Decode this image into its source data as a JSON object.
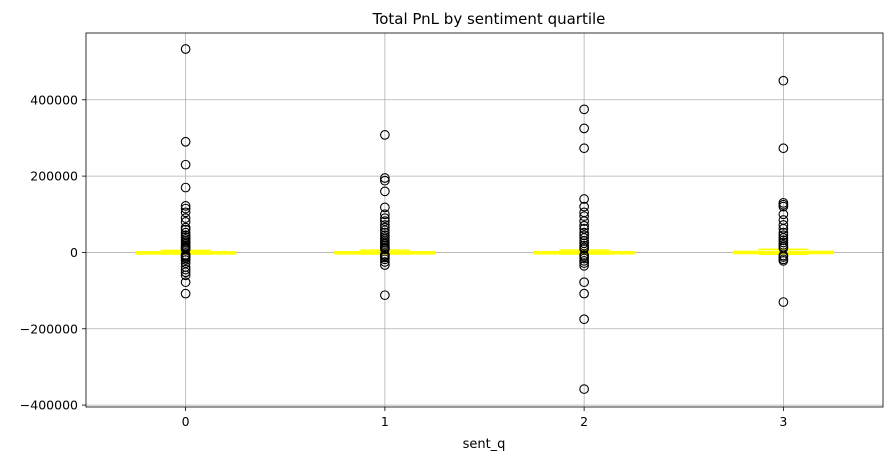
{
  "chart_data": {
    "type": "box",
    "title": "Total PnL by sentiment quartile",
    "xlabel": "sent_q",
    "ylabel": "",
    "categories": [
      "0",
      "1",
      "2",
      "3"
    ],
    "ylim": [
      -405000,
      575000
    ],
    "yticks": [
      -400000,
      -200000,
      0,
      200000,
      400000
    ],
    "ytick_labels": [
      "−400000",
      "−200000",
      "0",
      "200000",
      "400000"
    ],
    "grid": true,
    "box_color": "#ffff00",
    "boxes": [
      {
        "category": "0",
        "q1": -800,
        "median": 0,
        "q3": 1500,
        "whisker_low": -4000,
        "whisker_high": 5500,
        "outliers": [
          533000,
          290000,
          230000,
          170000,
          122000,
          115000,
          105000,
          90000,
          80000,
          65000,
          60000,
          52000,
          45000,
          40000,
          35000,
          30000,
          26000,
          22000,
          18000,
          15000,
          12000,
          10000,
          8000,
          -6000,
          -9000,
          -12000,
          -15000,
          -20000,
          -28000,
          -38000,
          -45000,
          -52000,
          -60000,
          -78000,
          -108000
        ]
      },
      {
        "category": "1",
        "q1": -700,
        "median": 0,
        "q3": 1600,
        "whisker_low": -3800,
        "whisker_high": 6000,
        "outliers": [
          308000,
          195000,
          188000,
          160000,
          118000,
          100000,
          90000,
          82000,
          72000,
          65000,
          58000,
          52000,
          45000,
          40000,
          35000,
          30000,
          26000,
          22000,
          18000,
          14000,
          11000,
          8500,
          -6000,
          -9000,
          -13000,
          -18000,
          -25000,
          -33000,
          -112000
        ]
      },
      {
        "category": "2",
        "q1": -800,
        "median": 0,
        "q3": 1800,
        "whisker_low": -4200,
        "whisker_high": 6500,
        "outliers": [
          375000,
          325000,
          273000,
          140000,
          120000,
          105000,
          95000,
          82000,
          70000,
          62000,
          52000,
          45000,
          38000,
          30000,
          24000,
          18000,
          13000,
          9000,
          -7000,
          -11000,
          -16000,
          -22000,
          -28000,
          -35000,
          -78000,
          -108000,
          -175000,
          -358000
        ]
      },
      {
        "category": "3",
        "q1": -900,
        "median": 0,
        "q3": 2500,
        "whisker_low": -4800,
        "whisker_high": 8500,
        "outliers": [
          450000,
          273000,
          130000,
          125000,
          120000,
          100000,
          85000,
          72000,
          62000,
          52000,
          45000,
          38000,
          32000,
          26000,
          20000,
          15000,
          11000,
          -8000,
          -12000,
          -18000,
          -22000,
          -130000
        ]
      }
    ]
  }
}
